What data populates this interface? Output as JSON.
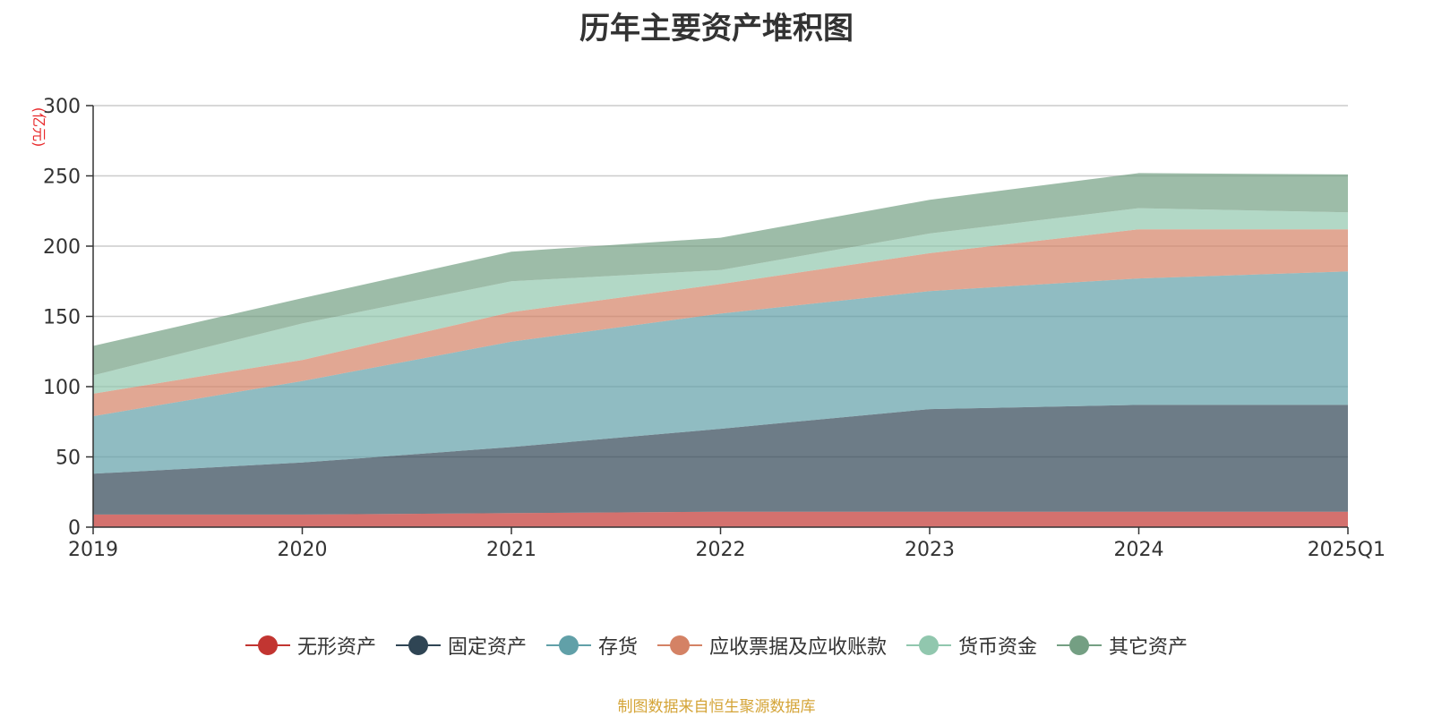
{
  "chart_data": {
    "type": "area",
    "stacked": true,
    "title": "历年主要资产堆积图",
    "unit": "(亿元)",
    "categories": [
      "2019",
      "2020",
      "2021",
      "2022",
      "2023",
      "2024",
      "2025Q1"
    ],
    "ylim": [
      0,
      300
    ],
    "yticks": [
      "0",
      "50",
      "100",
      "150",
      "200",
      "250",
      "300"
    ],
    "grid": true,
    "legend_position": "bottom",
    "series": [
      {
        "name": "无形资产",
        "color": "#c23531",
        "values": [
          9,
          9,
          10,
          11,
          11,
          11,
          11
        ]
      },
      {
        "name": "固定资产",
        "color": "#2f4554",
        "values": [
          29,
          37,
          47,
          59,
          73,
          76,
          76
        ]
      },
      {
        "name": "存货",
        "color": "#61a0a8",
        "values": [
          41,
          58,
          75,
          82,
          84,
          90,
          95
        ]
      },
      {
        "name": "应收票据及应收账款",
        "color": "#d48265",
        "values": [
          16,
          15,
          21,
          21,
          27,
          35,
          30
        ]
      },
      {
        "name": "货币资金",
        "color": "#91c7ae",
        "values": [
          13,
          26,
          22,
          10,
          14,
          15,
          12
        ]
      },
      {
        "name": "其它资产",
        "color": "#749f83",
        "values": [
          21,
          18,
          21,
          23,
          24,
          25,
          27
        ]
      }
    ]
  },
  "source_note": "制图数据来自恒生聚源数据库"
}
